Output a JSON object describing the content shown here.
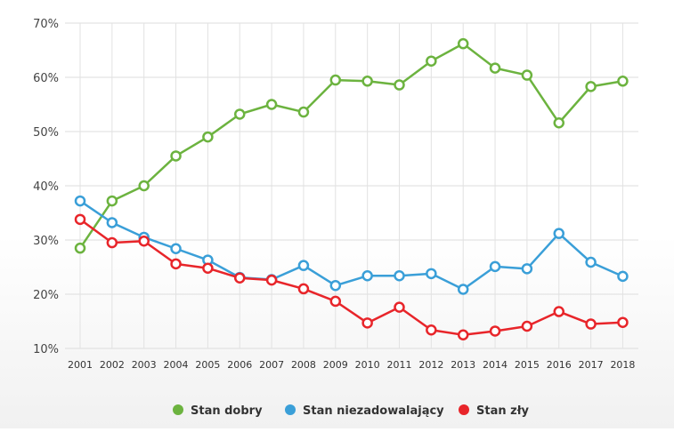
{
  "chart_data": {
    "type": "line",
    "categories": [
      "2001",
      "2002",
      "2003",
      "2004",
      "2005",
      "2006",
      "2007",
      "2008",
      "2009",
      "2010",
      "2011",
      "2012",
      "2013",
      "2014",
      "2015",
      "2016",
      "2017",
      "2018"
    ],
    "ylim": [
      10,
      70
    ],
    "yticks": [
      10,
      20,
      30,
      40,
      50,
      60,
      70
    ],
    "ytick_format": "%",
    "grid": true,
    "legend_position": "bottom",
    "series": [
      {
        "name": "Stan dobry",
        "color": "#6cb33f",
        "values": [
          28.5,
          37.2,
          40.0,
          45.5,
          49.0,
          53.2,
          55.0,
          53.6,
          59.5,
          59.3,
          58.6,
          63.0,
          66.2,
          61.7,
          60.4,
          51.6,
          58.3,
          59.3
        ]
      },
      {
        "name": "Stan niezadowalający",
        "color": "#3a9fd8",
        "values": [
          37.2,
          33.2,
          30.5,
          28.4,
          26.3,
          23.1,
          22.7,
          25.3,
          21.6,
          23.4,
          23.4,
          23.8,
          20.9,
          25.1,
          24.7,
          31.2,
          25.9,
          23.3
        ]
      },
      {
        "name": "Stan zły",
        "color": "#e8252a",
        "values": [
          33.8,
          29.5,
          29.8,
          25.6,
          24.8,
          23.0,
          22.6,
          21.0,
          18.7,
          14.7,
          17.6,
          13.4,
          12.5,
          13.2,
          14.1,
          16.8,
          14.5,
          14.8
        ]
      }
    ]
  }
}
